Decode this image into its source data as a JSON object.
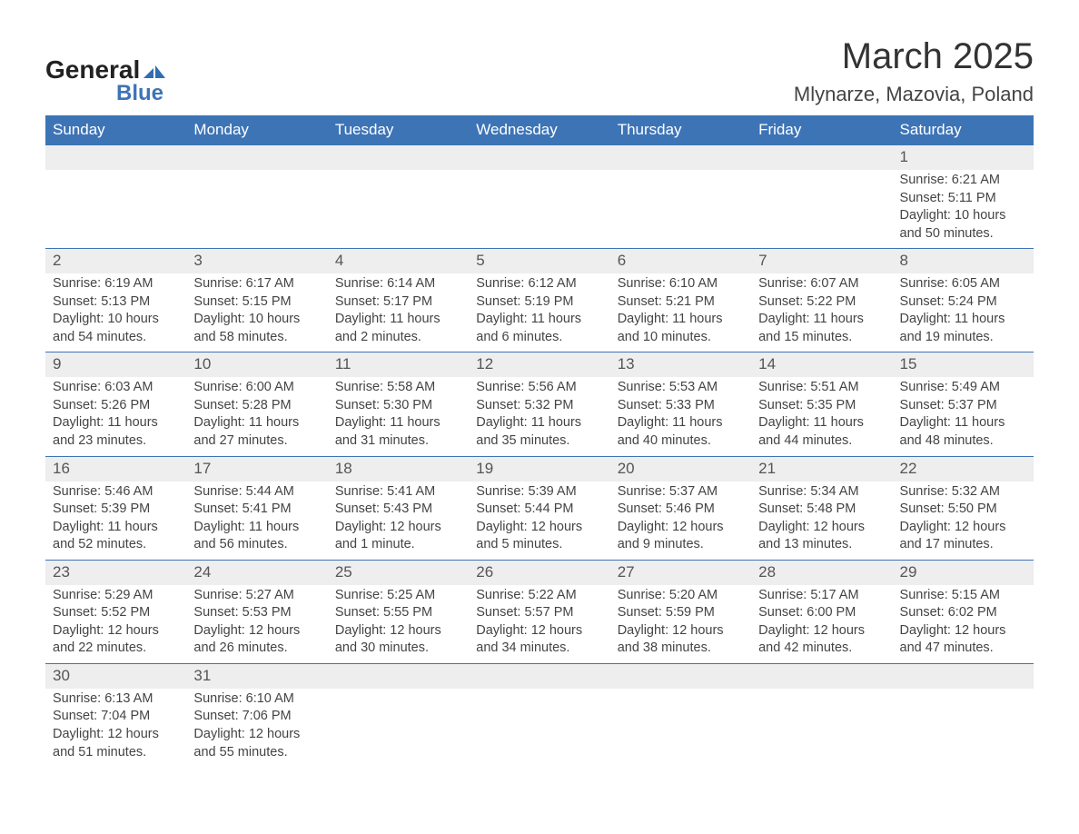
{
  "logo": {
    "general": "General",
    "blue": "Blue",
    "icon_color": "#2f6db3"
  },
  "title": "March 2025",
  "location": "Mlynarze, Mazovia, Poland",
  "colors": {
    "header_bg": "#3d74b6",
    "header_text": "#ffffff",
    "daynum_bg": "#eeeeee",
    "row_border": "#3d74b6",
    "text": "#444444"
  },
  "typography": {
    "title_fontsize": 40,
    "location_fontsize": 22,
    "weekday_fontsize": 17,
    "daynum_fontsize": 17,
    "cell_fontsize": 14.5
  },
  "weekdays": [
    "Sunday",
    "Monday",
    "Tuesday",
    "Wednesday",
    "Thursday",
    "Friday",
    "Saturday"
  ],
  "labels": {
    "sunrise": "Sunrise:",
    "sunset": "Sunset:",
    "daylight": "Daylight:"
  },
  "weeks": [
    [
      null,
      null,
      null,
      null,
      null,
      null,
      {
        "n": "1",
        "sr": "6:21 AM",
        "ss": "5:11 PM",
        "dl": "10 hours and 50 minutes."
      }
    ],
    [
      {
        "n": "2",
        "sr": "6:19 AM",
        "ss": "5:13 PM",
        "dl": "10 hours and 54 minutes."
      },
      {
        "n": "3",
        "sr": "6:17 AM",
        "ss": "5:15 PM",
        "dl": "10 hours and 58 minutes."
      },
      {
        "n": "4",
        "sr": "6:14 AM",
        "ss": "5:17 PM",
        "dl": "11 hours and 2 minutes."
      },
      {
        "n": "5",
        "sr": "6:12 AM",
        "ss": "5:19 PM",
        "dl": "11 hours and 6 minutes."
      },
      {
        "n": "6",
        "sr": "6:10 AM",
        "ss": "5:21 PM",
        "dl": "11 hours and 10 minutes."
      },
      {
        "n": "7",
        "sr": "6:07 AM",
        "ss": "5:22 PM",
        "dl": "11 hours and 15 minutes."
      },
      {
        "n": "8",
        "sr": "6:05 AM",
        "ss": "5:24 PM",
        "dl": "11 hours and 19 minutes."
      }
    ],
    [
      {
        "n": "9",
        "sr": "6:03 AM",
        "ss": "5:26 PM",
        "dl": "11 hours and 23 minutes."
      },
      {
        "n": "10",
        "sr": "6:00 AM",
        "ss": "5:28 PM",
        "dl": "11 hours and 27 minutes."
      },
      {
        "n": "11",
        "sr": "5:58 AM",
        "ss": "5:30 PM",
        "dl": "11 hours and 31 minutes."
      },
      {
        "n": "12",
        "sr": "5:56 AM",
        "ss": "5:32 PM",
        "dl": "11 hours and 35 minutes."
      },
      {
        "n": "13",
        "sr": "5:53 AM",
        "ss": "5:33 PM",
        "dl": "11 hours and 40 minutes."
      },
      {
        "n": "14",
        "sr": "5:51 AM",
        "ss": "5:35 PM",
        "dl": "11 hours and 44 minutes."
      },
      {
        "n": "15",
        "sr": "5:49 AM",
        "ss": "5:37 PM",
        "dl": "11 hours and 48 minutes."
      }
    ],
    [
      {
        "n": "16",
        "sr": "5:46 AM",
        "ss": "5:39 PM",
        "dl": "11 hours and 52 minutes."
      },
      {
        "n": "17",
        "sr": "5:44 AM",
        "ss": "5:41 PM",
        "dl": "11 hours and 56 minutes."
      },
      {
        "n": "18",
        "sr": "5:41 AM",
        "ss": "5:43 PM",
        "dl": "12 hours and 1 minute."
      },
      {
        "n": "19",
        "sr": "5:39 AM",
        "ss": "5:44 PM",
        "dl": "12 hours and 5 minutes."
      },
      {
        "n": "20",
        "sr": "5:37 AM",
        "ss": "5:46 PM",
        "dl": "12 hours and 9 minutes."
      },
      {
        "n": "21",
        "sr": "5:34 AM",
        "ss": "5:48 PM",
        "dl": "12 hours and 13 minutes."
      },
      {
        "n": "22",
        "sr": "5:32 AM",
        "ss": "5:50 PM",
        "dl": "12 hours and 17 minutes."
      }
    ],
    [
      {
        "n": "23",
        "sr": "5:29 AM",
        "ss": "5:52 PM",
        "dl": "12 hours and 22 minutes."
      },
      {
        "n": "24",
        "sr": "5:27 AM",
        "ss": "5:53 PM",
        "dl": "12 hours and 26 minutes."
      },
      {
        "n": "25",
        "sr": "5:25 AM",
        "ss": "5:55 PM",
        "dl": "12 hours and 30 minutes."
      },
      {
        "n": "26",
        "sr": "5:22 AM",
        "ss": "5:57 PM",
        "dl": "12 hours and 34 minutes."
      },
      {
        "n": "27",
        "sr": "5:20 AM",
        "ss": "5:59 PM",
        "dl": "12 hours and 38 minutes."
      },
      {
        "n": "28",
        "sr": "5:17 AM",
        "ss": "6:00 PM",
        "dl": "12 hours and 42 minutes."
      },
      {
        "n": "29",
        "sr": "5:15 AM",
        "ss": "6:02 PM",
        "dl": "12 hours and 47 minutes."
      }
    ],
    [
      {
        "n": "30",
        "sr": "6:13 AM",
        "ss": "7:04 PM",
        "dl": "12 hours and 51 minutes."
      },
      {
        "n": "31",
        "sr": "6:10 AM",
        "ss": "7:06 PM",
        "dl": "12 hours and 55 minutes."
      },
      null,
      null,
      null,
      null,
      null
    ]
  ]
}
